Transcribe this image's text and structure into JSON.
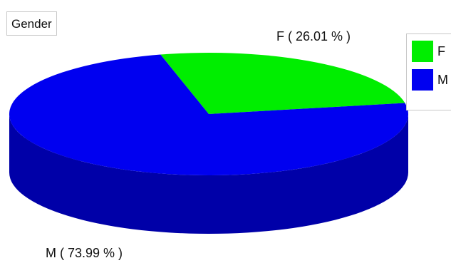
{
  "chart_data": {
    "type": "pie",
    "title": "Gender",
    "slices": [
      {
        "name": "F",
        "value": 26.01,
        "color": "#00ee00",
        "side_color": "#00a000",
        "label": "F ( 26.01 % )"
      },
      {
        "name": "M",
        "value": 73.99,
        "color": "#0000f0",
        "side_color": "#0000a8",
        "label": "M ( 73.99 % )"
      }
    ],
    "style": "3d",
    "legend_placement": "right"
  }
}
